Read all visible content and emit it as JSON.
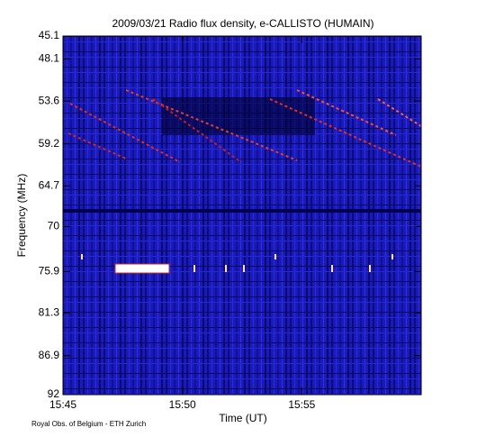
{
  "chart_data": {
    "type": "spectrogram",
    "title": "2009/03/21  Radio flux density, e-CALLISTO (HUMAIN)",
    "xlabel": "Time (UT)",
    "ylabel": "Frequency (MHz)",
    "credit": "Royal Obs. of Belgium - ETH Zurich",
    "xlim": [
      "15:45",
      "16:00"
    ],
    "xticks": [
      "15:45",
      "15:50",
      "15:55"
    ],
    "ylim": [
      45.1,
      92.0
    ],
    "yticks": [
      45.1,
      48.1,
      53.6,
      59.2,
      64.7,
      70.0,
      75.9,
      81.3,
      86.9,
      92.0
    ],
    "y_inverted": true
  }
}
